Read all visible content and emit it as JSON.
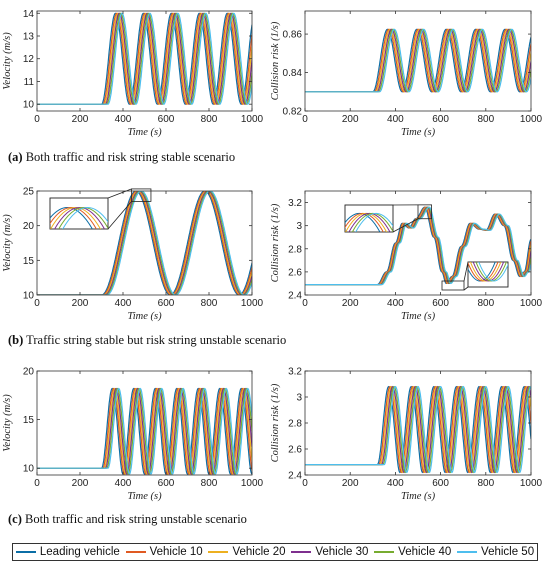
{
  "captions": [
    {
      "letter": "(a)",
      "text": " Both traffic and risk string stable scenario"
    },
    {
      "letter": "(b)",
      "text": " Traffic string stable but risk string unstable scenario"
    },
    {
      "letter": "(c)",
      "text": " Both traffic and risk string unstable scenario"
    }
  ],
  "colors": [
    "#0b6ea6",
    "#e05a22",
    "#edb020",
    "#7e2f8e",
    "#77ac30",
    "#4dbeee"
  ],
  "legend": [
    "Leading vehicle",
    "Vehicle 10",
    "Vehicle 20",
    "Vehicle 30",
    "Vehicle 40",
    "Vehicle 50"
  ],
  "chart_data": [
    {
      "id": "a-velocity",
      "type": "line",
      "xlabel": "Time (s)",
      "ylabel": "Velocity (m/s)",
      "xlim": [
        0,
        1000
      ],
      "ylim": [
        9.7,
        14.1
      ],
      "xticks": [
        "0",
        "200",
        "400",
        "600",
        "800",
        "1000"
      ],
      "yticks": [
        "10",
        "11",
        "12",
        "13",
        "14"
      ],
      "signal": {
        "base": 10,
        "start": 300,
        "amplitude": 4,
        "period": 130,
        "shape": "raised-cosine"
      },
      "series_lag_s": [
        0,
        6,
        12,
        18,
        24,
        30
      ],
      "grid": false
    },
    {
      "id": "a-risk",
      "type": "line",
      "xlabel": "Time (s)",
      "ylabel": "Collision risk (1/s)",
      "xlim": [
        0,
        1000
      ],
      "ylim": [
        0.82,
        0.872
      ],
      "xticks": [
        "0",
        "200",
        "400",
        "600",
        "800",
        "1000"
      ],
      "yticks": [
        "0.82",
        "0.84",
        "0.86"
      ],
      "signal": {
        "base": 0.83,
        "start": 300,
        "amplitude": 0.0325,
        "period": 130,
        "shape": "raised-cosine"
      },
      "series_lag_s": [
        0,
        6,
        12,
        18,
        24,
        30
      ],
      "grid": false
    },
    {
      "id": "b-velocity",
      "type": "line",
      "xlabel": "Time (s)",
      "ylabel": "Velocity (m/s)",
      "xlim": [
        0,
        1000
      ],
      "ylim": [
        10,
        25
      ],
      "xticks": [
        "0",
        "200",
        "400",
        "600",
        "800",
        "1000"
      ],
      "yticks": [
        "10",
        "15",
        "20",
        "25"
      ],
      "signal": {
        "base": 10,
        "start": 300,
        "amplitude": 15,
        "period": 320,
        "shape": "raised-cosine"
      },
      "series_lag_s": [
        0,
        5,
        10,
        15,
        20,
        25
      ],
      "grid": false
    },
    {
      "id": "b-risk",
      "type": "line",
      "xlabel": "Time (s)",
      "ylabel": "Collision risk (1/s)",
      "xlim": [
        0,
        1000
      ],
      "ylim": [
        2.4,
        3.3
      ],
      "xticks": [
        "0",
        "200",
        "400",
        "600",
        "800",
        "1000"
      ],
      "yticks": [
        "2.4",
        "2.6",
        "2.8",
        "3",
        "3.2"
      ],
      "points": [
        [
          0,
          2.49
        ],
        [
          320,
          2.49
        ],
        [
          360,
          2.6
        ],
        [
          400,
          2.85
        ],
        [
          430,
          3.02
        ],
        [
          460,
          2.98
        ],
        [
          490,
          3.06
        ],
        [
          530,
          3.16
        ],
        [
          570,
          2.9
        ],
        [
          605,
          2.6
        ],
        [
          625,
          2.5
        ],
        [
          650,
          2.56
        ],
        [
          690,
          2.82
        ],
        [
          730,
          3.02
        ],
        [
          770,
          2.97
        ],
        [
          800,
          2.96
        ],
        [
          840,
          3.1
        ],
        [
          880,
          3.0
        ],
        [
          920,
          2.7
        ],
        [
          950,
          2.56
        ],
        [
          970,
          2.6
        ],
        [
          1000,
          2.88
        ]
      ],
      "series_lag_s": [
        0,
        4,
        8,
        12,
        16,
        20
      ],
      "grid": false
    },
    {
      "id": "c-velocity",
      "type": "line",
      "xlabel": "Time (s)",
      "ylabel": "Velocity (m/s)",
      "xlim": [
        0,
        1000
      ],
      "ylim": [
        9.3,
        20
      ],
      "xticks": [
        "0",
        "200",
        "400",
        "600",
        "800",
        "1000"
      ],
      "yticks": [
        "10",
        "15",
        "20"
      ],
      "signal": {
        "base": 10,
        "start": 300,
        "amplitude": 8.2,
        "period": 100,
        "shape": "raised-cosine",
        "dip": 0.6
      },
      "series_lag_s": [
        0,
        6,
        12,
        18,
        24,
        30
      ],
      "grid": false
    },
    {
      "id": "c-risk",
      "type": "line",
      "xlabel": "Time (s)",
      "ylabel": "Collision risk (1/s)",
      "xlim": [
        0,
        1000
      ],
      "ylim": [
        2.4,
        3.2
      ],
      "xticks": [
        "0",
        "200",
        "400",
        "600",
        "800",
        "1000"
      ],
      "yticks": [
        "2.4",
        "2.6",
        "2.8",
        "3",
        "3.2"
      ],
      "signal": {
        "base": 2.48,
        "start": 320,
        "amplitude": 0.6,
        "period": 100,
        "shape": "raised-cosine",
        "dip": 0.06
      },
      "series_lag_s": [
        0,
        6,
        12,
        18,
        24,
        30
      ],
      "grid": false
    }
  ]
}
